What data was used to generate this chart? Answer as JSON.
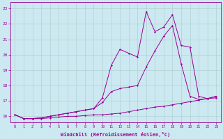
{
  "xlabel": "Windchill (Refroidissement éolien,°C)",
  "background_color": "#cce8f0",
  "grid_color": "#aacccc",
  "line_color": "#990099",
  "x_ticks": [
    0,
    1,
    2,
    3,
    4,
    5,
    6,
    7,
    8,
    9,
    10,
    11,
    12,
    13,
    14,
    15,
    16,
    17,
    18,
    19,
    20,
    21,
    22,
    23
  ],
  "y_ticks": [
    16,
    17,
    18,
    19,
    20,
    21,
    22,
    23
  ],
  "ylim": [
    15.6,
    23.4
  ],
  "xlim": [
    -0.5,
    23.5
  ],
  "line1_y": [
    16.1,
    15.85,
    15.85,
    15.85,
    15.9,
    15.95,
    16.0,
    16.0,
    16.05,
    16.1,
    16.1,
    16.15,
    16.2,
    16.3,
    16.4,
    16.5,
    16.6,
    16.65,
    16.75,
    16.85,
    16.95,
    17.05,
    17.15,
    17.2
  ],
  "line2_y": [
    16.1,
    15.85,
    15.85,
    15.9,
    16.0,
    16.1,
    16.2,
    16.3,
    16.4,
    16.5,
    16.9,
    17.6,
    17.8,
    17.9,
    18.0,
    19.2,
    20.25,
    21.2,
    21.9,
    19.4,
    17.3,
    17.1,
    17.15,
    17.3
  ],
  "line3_y": [
    16.1,
    15.85,
    15.85,
    15.9,
    16.0,
    16.1,
    16.2,
    16.3,
    16.4,
    16.5,
    17.2,
    19.3,
    20.35,
    20.1,
    19.85,
    22.8,
    21.5,
    21.8,
    22.6,
    20.6,
    20.5,
    17.3,
    17.15,
    17.3
  ]
}
